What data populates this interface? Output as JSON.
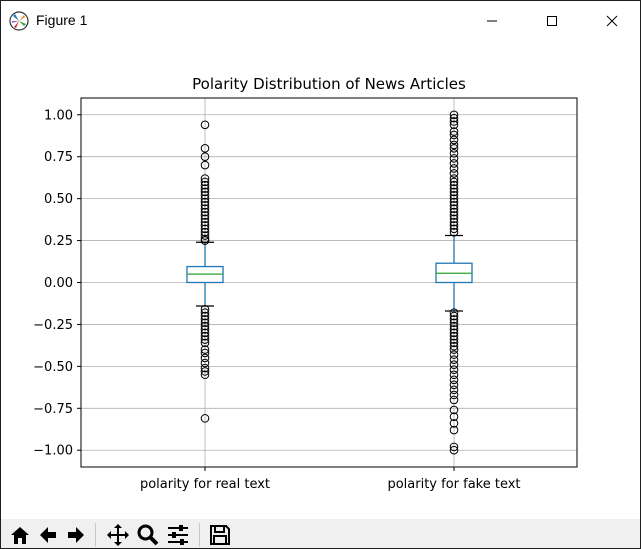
{
  "window": {
    "title": "Figure 1"
  },
  "toolbar": {
    "buttons": [
      {
        "name": "home-button",
        "icon": "home-icon"
      },
      {
        "name": "back-button",
        "icon": "arrow-left-icon"
      },
      {
        "name": "forward-button",
        "icon": "arrow-right-icon"
      },
      {
        "name": "pan-button",
        "icon": "move-icon"
      },
      {
        "name": "zoom-button",
        "icon": "magnifier-icon"
      },
      {
        "name": "configure-subplots-button",
        "icon": "sliders-icon"
      },
      {
        "name": "save-button",
        "icon": "floppy-disk-icon"
      }
    ]
  },
  "chart_data": {
    "type": "box",
    "title": "Polarity Distribution of News Articles",
    "xlabel": "",
    "ylabel": "",
    "ylim": [
      -1.1,
      1.1
    ],
    "yticks": [
      1.0,
      0.75,
      0.5,
      0.25,
      0.0,
      -0.25,
      -0.5,
      -0.75,
      -1.0
    ],
    "ytick_labels": [
      "1.00",
      "0.75",
      "0.50",
      "0.25",
      "0.00",
      "−0.25",
      "−0.50",
      "−0.75",
      "−1.00"
    ],
    "grid": true,
    "colors": {
      "box": "#1f77b4",
      "median": "#2ca02c",
      "whisker": "#1f77b4",
      "flier": "#000000",
      "grid": "#b0b0b0"
    },
    "categories": [
      "polarity for real text",
      "polarity for fake text"
    ],
    "boxes": [
      {
        "label": "polarity for real text",
        "q1": 0.0,
        "median": 0.05,
        "q3": 0.095,
        "whisker_low": -0.14,
        "whisker_high": 0.24,
        "fliers": [
          0.94,
          0.8,
          0.75,
          0.7,
          0.62,
          0.6,
          0.58,
          0.56,
          0.54,
          0.52,
          0.5,
          0.48,
          0.46,
          0.44,
          0.42,
          0.4,
          0.38,
          0.36,
          0.34,
          0.32,
          0.3,
          0.28,
          0.26,
          0.25,
          -0.16,
          -0.18,
          -0.2,
          -0.22,
          -0.24,
          -0.26,
          -0.28,
          -0.3,
          -0.32,
          -0.34,
          -0.36,
          -0.4,
          -0.42,
          -0.45,
          -0.48,
          -0.51,
          -0.53,
          -0.55,
          -0.81
        ]
      },
      {
        "label": "polarity for fake text",
        "q1": 0.0,
        "median": 0.055,
        "q3": 0.115,
        "whisker_low": -0.17,
        "whisker_high": 0.28,
        "fliers": [
          1.0,
          0.98,
          0.96,
          0.94,
          0.9,
          0.88,
          0.85,
          0.82,
          0.8,
          0.77,
          0.74,
          0.71,
          0.68,
          0.65,
          0.62,
          0.6,
          0.58,
          0.56,
          0.54,
          0.52,
          0.5,
          0.48,
          0.46,
          0.44,
          0.42,
          0.4,
          0.38,
          0.36,
          0.34,
          0.32,
          0.3,
          -0.18,
          -0.2,
          -0.22,
          -0.24,
          -0.26,
          -0.28,
          -0.3,
          -0.32,
          -0.34,
          -0.36,
          -0.38,
          -0.4,
          -0.43,
          -0.46,
          -0.49,
          -0.52,
          -0.55,
          -0.58,
          -0.61,
          -0.64,
          -0.67,
          -0.7,
          -0.76,
          -0.8,
          -0.84,
          -0.88,
          -0.98,
          -1.0
        ]
      }
    ]
  }
}
